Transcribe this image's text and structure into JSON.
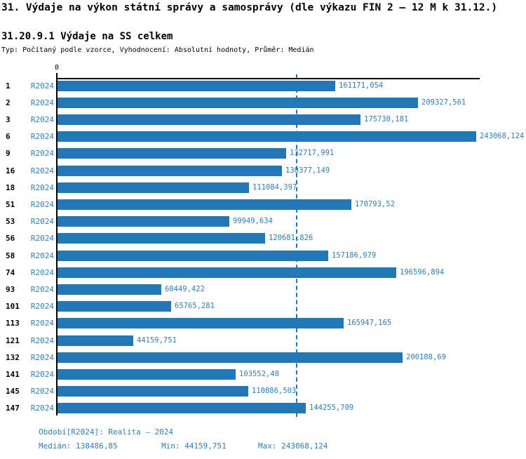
{
  "page": {
    "title": "31. Výdaje na výkon státní správy a samosprávy (dle výkazu FIN 2 – 12 M k 31.12.)",
    "subtitle": "31.20.9.1 Výdaje na SS celkem",
    "meta": "Typ: Počítaný podle vzorce, Vyhodnocení: Absolutní hodnoty, Průměr: Medián"
  },
  "chart_data": {
    "type": "bar",
    "orientation": "horizontal",
    "title": "31.20.9.1 Výdaje na SS celkem",
    "series_label": "R2024",
    "x_tick_zero": "0",
    "xlim": [
      0,
      243068.124
    ],
    "grid": false,
    "categories": [
      "1",
      "2",
      "3",
      "6",
      "9",
      "16",
      "18",
      "51",
      "53",
      "56",
      "58",
      "74",
      "93",
      "101",
      "113",
      "121",
      "132",
      "141",
      "145",
      "147"
    ],
    "values": [
      161171.054,
      209327.561,
      175730.181,
      243068.124,
      132717.991,
      130377.149,
      111084.397,
      170793.52,
      99949.634,
      120681.826,
      157186.979,
      196596.894,
      60449.422,
      65765.281,
      165947.165,
      44159.751,
      200188.69,
      103552.48,
      110886.503,
      144255.709
    ],
    "value_labels": [
      "161171,054",
      "209327,561",
      "175730,181",
      "243068,124",
      "132717,991",
      "130377,149",
      "111084,397",
      "170793,52",
      "99949,634",
      "120681,826",
      "157186,979",
      "196596,894",
      "60449,422",
      "65765,281",
      "165947,165",
      "44159,751",
      "200188,69",
      "103552,48",
      "110886,503",
      "144255,709"
    ],
    "median_value": 138486.85,
    "min_value": 44159.751,
    "max_value": 243068.124,
    "median_line": true,
    "colors": {
      "bar": "#2277b4",
      "blue_text": "#2e7fb5",
      "axis": "#000000"
    }
  },
  "footer": {
    "period": "Období[R2024]: Realita – 2024",
    "median": "Medián: 138486,85",
    "min": "Min: 44159,751",
    "max": "Max: 243068,124"
  }
}
